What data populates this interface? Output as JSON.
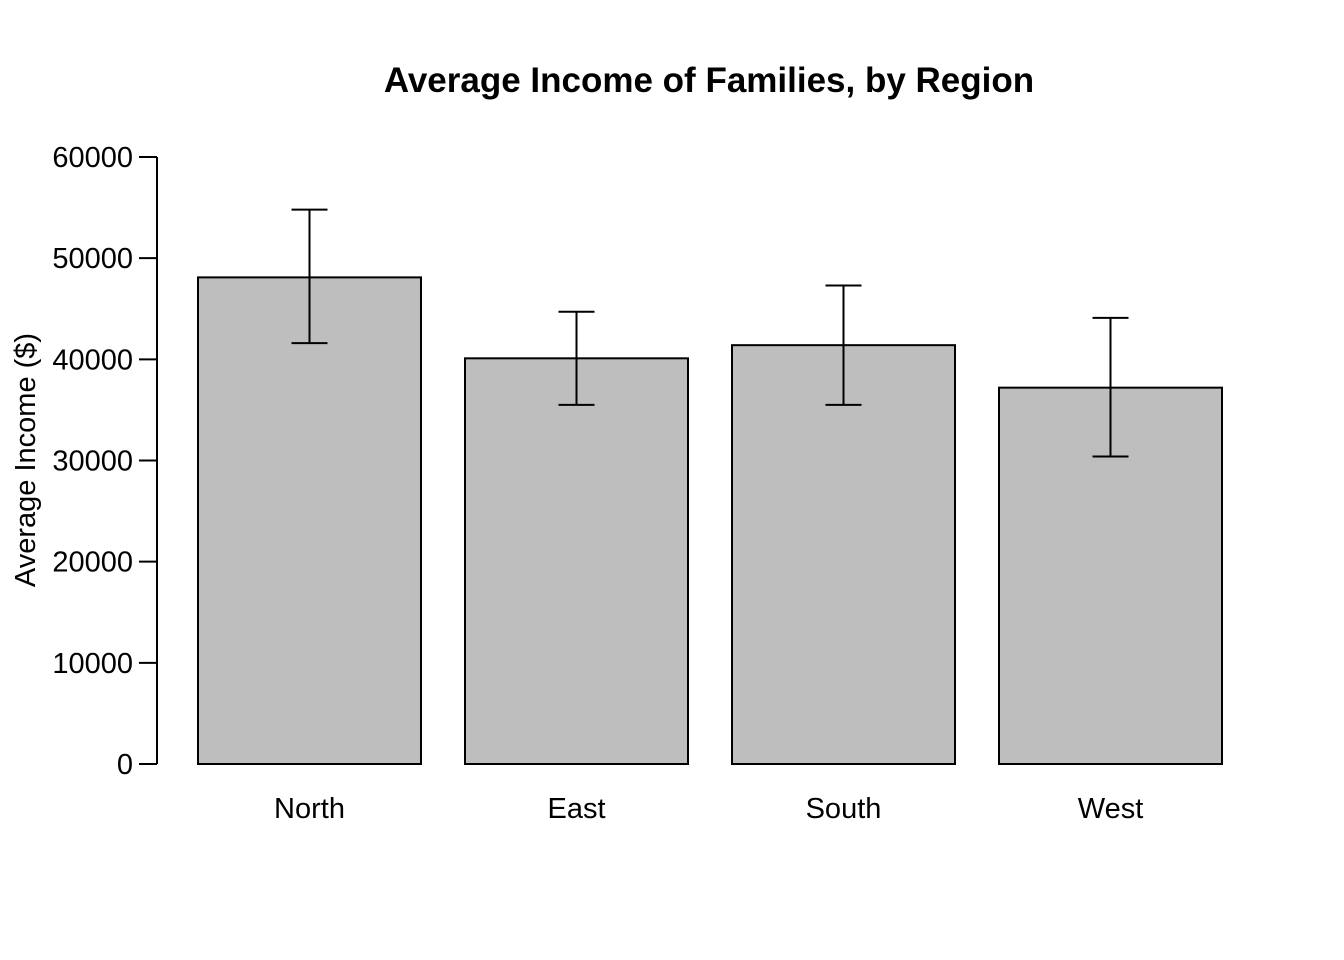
{
  "chart_data": {
    "type": "bar",
    "title": "Average Income of Families, by Region",
    "xlabel": "",
    "ylabel": "Average Income ($)",
    "categories": [
      "North",
      "East",
      "South",
      "West"
    ],
    "values": [
      48100,
      40100,
      41400,
      37200
    ],
    "error_bars": [
      {
        "low": 41600,
        "high": 54800
      },
      {
        "low": 35500,
        "high": 44700
      },
      {
        "low": 35500,
        "high": 47300
      },
      {
        "low": 30400,
        "high": 44100
      }
    ],
    "ylim": [
      0,
      60000
    ],
    "yticks": [
      "0",
      "10000",
      "20000",
      "30000",
      "40000",
      "50000",
      "60000"
    ],
    "ytick_values": [
      0,
      10000,
      20000,
      30000,
      40000,
      50000,
      60000
    ],
    "grid": false,
    "legend": "none",
    "colors": {
      "bar_fill": "#bebebe",
      "bar_stroke": "#000000",
      "axis": "#000000"
    }
  }
}
